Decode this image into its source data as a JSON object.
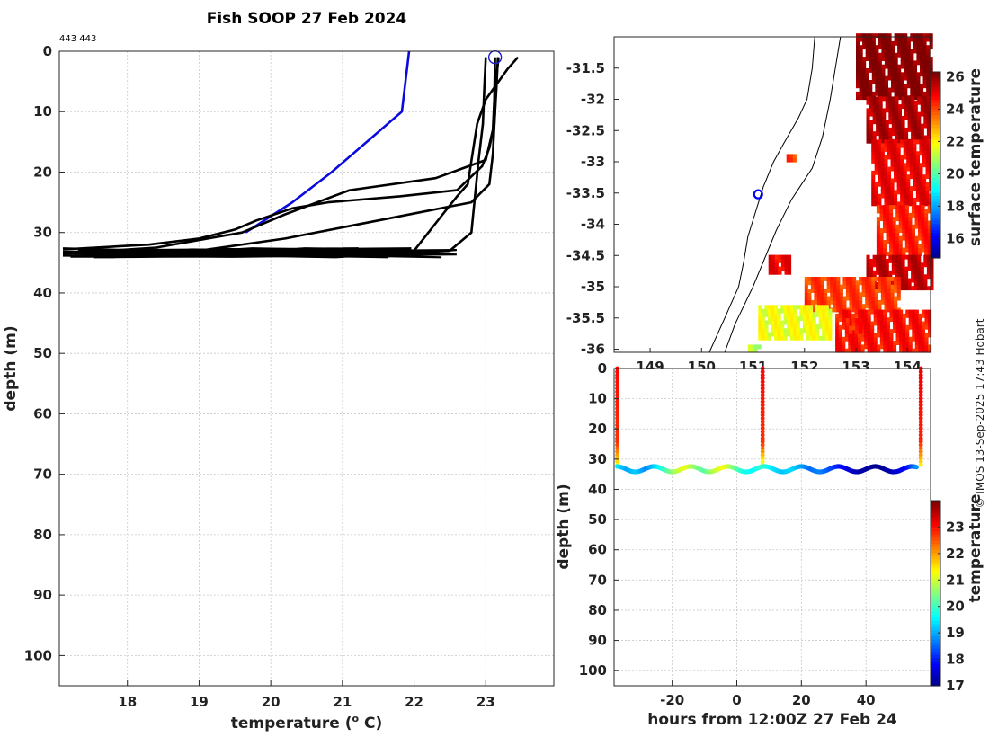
{
  "page": {
    "credit": "© IMOS 13-Sep-2025 17:43 Hobart"
  },
  "chart_data": [
    {
      "id": "profile",
      "type": "line",
      "title": "Fish SOOP 27 Feb 2024",
      "annotation": "443 443",
      "xlabel": "temperature (",
      "xlabel_sup": "o",
      "xlabel_tail": " C)",
      "ylabel": "depth (m)",
      "xlim": [
        17.05,
        23.95
      ],
      "ylim": [
        0,
        105
      ],
      "y_reversed": true,
      "xticks": [
        18,
        19,
        20,
        21,
        22,
        23
      ],
      "yticks": [
        0,
        10,
        20,
        30,
        40,
        50,
        60,
        70,
        80,
        90,
        100
      ],
      "grid": true,
      "marker": {
        "temperature": 23.13,
        "depth": 1,
        "shape": "circle",
        "color": "#1a1ad6"
      },
      "series": [
        {
          "name": "blue profile",
          "color": "#0a0ae0",
          "points": [
            [
              21.93,
              0
            ],
            [
              21.88,
              5
            ],
            [
              21.83,
              10
            ],
            [
              20.85,
              20
            ],
            [
              20.3,
              25
            ],
            [
              19.65,
              30
            ]
          ]
        },
        {
          "name": "profile 1",
          "color": "#000000",
          "points": [
            [
              23.45,
              1
            ],
            [
              23.3,
              3
            ],
            [
              23.0,
              8
            ],
            [
              22.88,
              12
            ],
            [
              22.75,
              22
            ],
            [
              22.6,
              24
            ],
            [
              22.4,
              27
            ],
            [
              22.2,
              30
            ],
            [
              22.0,
              33
            ],
            [
              21.0,
              33.5
            ],
            [
              19.0,
              33.3
            ],
            [
              17.1,
              33.3
            ]
          ]
        },
        {
          "name": "profile 2",
          "color": "#000000",
          "points": [
            [
              23.18,
              1
            ],
            [
              23.15,
              4
            ],
            [
              23.13,
              10
            ],
            [
              23.1,
              17
            ],
            [
              23.05,
              22
            ],
            [
              22.8,
              25
            ],
            [
              21.5,
              28
            ],
            [
              20.2,
              31
            ],
            [
              19.0,
              33
            ],
            [
              17.1,
              33.2
            ]
          ]
        },
        {
          "name": "profile 3",
          "color": "#000000",
          "points": [
            [
              23.13,
              1
            ],
            [
              23.12,
              8
            ],
            [
              23.1,
              13
            ],
            [
              23.0,
              18
            ],
            [
              22.3,
              21
            ],
            [
              21.1,
              23
            ],
            [
              20.2,
              27
            ],
            [
              19.6,
              30
            ],
            [
              18.4,
              32.5
            ],
            [
              17.1,
              33.5
            ]
          ]
        },
        {
          "name": "profile 4",
          "color": "#000000",
          "points": [
            [
              23.17,
              1
            ],
            [
              23.15,
              6
            ],
            [
              23.12,
              12
            ],
            [
              23.05,
              16
            ],
            [
              22.95,
              19
            ],
            [
              22.6,
              23
            ],
            [
              21.8,
              24
            ],
            [
              20.8,
              25
            ],
            [
              20.3,
              26
            ],
            [
              19.8,
              28
            ],
            [
              19.5,
              29.5
            ],
            [
              19.0,
              31
            ],
            [
              18.3,
              32
            ],
            [
              17.1,
              32.8
            ]
          ]
        },
        {
          "name": "profile 5",
          "color": "#000000",
          "points": [
            [
              23.0,
              1
            ],
            [
              22.98,
              6
            ],
            [
              22.96,
              12
            ],
            [
              22.9,
              18
            ],
            [
              22.85,
              24
            ],
            [
              22.8,
              30
            ],
            [
              22.5,
              33
            ],
            [
              21.5,
              33.7
            ],
            [
              19.5,
              34
            ],
            [
              17.1,
              33.8
            ]
          ]
        }
      ]
    },
    {
      "id": "map",
      "type": "heatmap",
      "xlabel": "",
      "ylabel": "",
      "xlim": [
        148.3,
        154.45
      ],
      "ylim": [
        -36.05,
        -31.0
      ],
      "xticks": [
        "149",
        "150",
        "151",
        "152",
        "153",
        "154"
      ],
      "xtick_values": [
        149,
        150,
        151,
        152,
        153,
        154
      ],
      "yticks": [
        "-31.5",
        "-32",
        "-32.5",
        "-33",
        "-33.5",
        "-34",
        "-34.5",
        "-35",
        "-35.5",
        "-36"
      ],
      "ytick_values": [
        -31.5,
        -32,
        -32.5,
        -33,
        -33.5,
        -34,
        -34.5,
        -35,
        -35.5,
        -36
      ],
      "location_marker": {
        "lon": 151.1,
        "lat": -33.52,
        "color": "#0000ff"
      },
      "colorbar": {
        "label": "surface temperature",
        "min": 14.8,
        "max": 26.3,
        "ticks": [
          "16",
          "18",
          "20",
          "22",
          "24",
          "26"
        ],
        "tick_values": [
          16,
          18,
          20,
          22,
          24,
          26
        ]
      },
      "sst_patches": [
        {
          "lon": [
            153.0,
            154.45
          ],
          "lat": [
            -32.0,
            -31.0
          ],
          "temp": 26.0
        },
        {
          "lon": [
            153.2,
            154.45
          ],
          "lat": [
            -32.7,
            -32.0
          ],
          "temp": 25.5
        },
        {
          "lon": [
            153.3,
            154.45
          ],
          "lat": [
            -33.7,
            -32.7
          ],
          "temp": 24.8
        },
        {
          "lon": [
            153.4,
            154.45
          ],
          "lat": [
            -34.5,
            -33.7
          ],
          "temp": 24.3
        },
        {
          "lon": [
            153.2,
            154.45
          ],
          "lat": [
            -35.05,
            -34.5
          ],
          "temp": 25.3
        },
        {
          "lon": [
            152.0,
            153.8
          ],
          "lat": [
            -35.4,
            -34.85
          ],
          "temp": 24.0
        },
        {
          "lon": [
            151.1,
            152.5
          ],
          "lat": [
            -35.85,
            -35.35
          ],
          "temp": 21.6
        },
        {
          "lon": [
            152.6,
            154.45
          ],
          "lat": [
            -36.05,
            -35.4
          ],
          "temp": 24.5
        },
        {
          "lon": [
            151.3,
            151.7
          ],
          "lat": [
            -34.8,
            -34.5
          ],
          "temp": 24.8
        },
        {
          "lon": [
            152.8,
            153.1
          ],
          "lat": [
            -35.75,
            -35.55
          ],
          "temp": 24.3
        },
        {
          "lon": [
            150.9,
            151.1
          ],
          "lat": [
            -36.05,
            -35.95
          ],
          "temp": 21.0
        },
        {
          "lon": [
            151.65,
            151.8
          ],
          "lat": [
            -33.0,
            -32.9
          ],
          "temp": 24.0
        }
      ],
      "coastline": [
        [
          152.2,
          -31.0
        ],
        [
          152.15,
          -31.5
        ],
        [
          152.05,
          -32.0
        ],
        [
          151.88,
          -32.3
        ],
        [
          151.6,
          -32.7
        ],
        [
          151.4,
          -33.0
        ],
        [
          151.2,
          -33.4
        ],
        [
          151.05,
          -33.8
        ],
        [
          150.9,
          -34.2
        ],
        [
          150.82,
          -34.6
        ],
        [
          150.72,
          -35.0
        ],
        [
          150.45,
          -35.5
        ],
        [
          150.15,
          -36.05
        ]
      ],
      "isobath": [
        [
          152.7,
          -31.0
        ],
        [
          152.6,
          -31.5
        ],
        [
          152.5,
          -32.0
        ],
        [
          152.35,
          -32.6
        ],
        [
          152.15,
          -33.1
        ],
        [
          151.75,
          -33.6
        ],
        [
          151.45,
          -34.1
        ],
        [
          151.2,
          -34.6
        ],
        [
          151.0,
          -35.0
        ],
        [
          150.65,
          -35.6
        ],
        [
          150.45,
          -36.05
        ]
      ]
    },
    {
      "id": "timeseries",
      "type": "scatter",
      "xlabel": "hours from 12:00Z 27 Feb 24",
      "ylabel": "depth (m)",
      "xlim": [
        -38,
        60
      ],
      "ylim": [
        0,
        105
      ],
      "y_reversed": true,
      "xticks": [
        -20,
        0,
        20,
        40
      ],
      "yticks": [
        0,
        10,
        20,
        30,
        40,
        50,
        60,
        70,
        80,
        90,
        100
      ],
      "colorbar": {
        "label": "temperature",
        "min": 17.0,
        "max": 24.0,
        "ticks": [
          "17",
          "18",
          "19",
          "20",
          "21",
          "22",
          "23"
        ],
        "tick_values": [
          17,
          18,
          19,
          20,
          21,
          22,
          23
        ]
      },
      "casts": [
        {
          "hour": -37,
          "top": 0,
          "bottom": 33,
          "temp_top": 23.1,
          "temp_bottom": 21.2
        },
        {
          "hour": 8,
          "top": 0,
          "bottom": 33,
          "temp_top": 23.1,
          "temp_bottom": 20.8
        },
        {
          "hour": 57,
          "top": 0,
          "bottom": 32,
          "temp_top": 23.2,
          "temp_bottom": 21.5
        }
      ],
      "bottom_track": {
        "hours": [
          -37,
          -34,
          -31,
          -28,
          -25,
          -22,
          -19,
          -16,
          -13,
          -10,
          -7,
          -4,
          -1,
          2,
          5,
          8,
          11,
          14,
          17,
          20,
          23,
          26,
          29,
          32,
          35,
          38,
          41,
          44,
          47,
          50,
          53,
          56
        ],
        "temps": [
          19.5,
          19.0,
          19.3,
          18.8,
          19.4,
          20.1,
          20.8,
          21.3,
          20.6,
          20.2,
          20.9,
          21.4,
          20.5,
          19.8,
          19.6,
          20.0,
          19.5,
          19.2,
          19.4,
          19.0,
          18.6,
          18.8,
          18.4,
          18.0,
          17.6,
          17.3,
          17.2,
          17.1,
          17.3,
          17.6,
          18.0,
          19.0
        ]
      }
    }
  ]
}
